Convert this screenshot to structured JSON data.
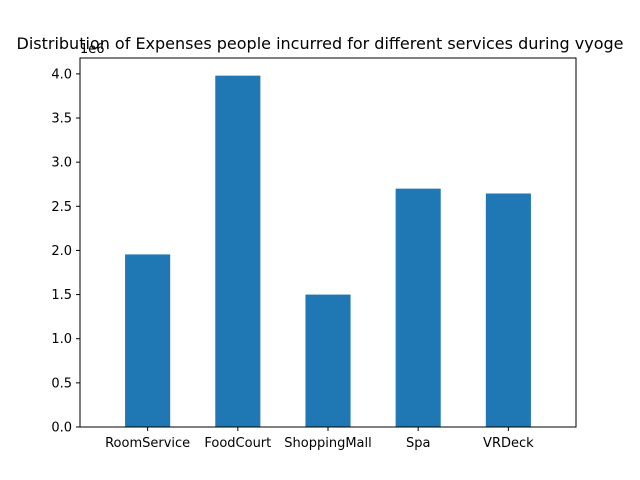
{
  "chart_data": {
    "type": "bar",
    "title": "Distribution of Expenses people incurred for different services during vyoge",
    "xlabel": "",
    "ylabel": "",
    "categories": [
      "RoomService",
      "FoodCourt",
      "ShoppingMall",
      "Spa",
      "VRDeck"
    ],
    "values": [
      1955000,
      3980000,
      1500000,
      2700000,
      2645000
    ],
    "ylim": [
      0,
      4180000
    ],
    "y_ticks": [
      0,
      500000,
      1000000,
      1500000,
      2000000,
      2500000,
      3000000,
      3500000,
      4000000
    ],
    "y_tick_labels": [
      "0.0",
      "0.5",
      "1.0",
      "1.5",
      "2.0",
      "2.5",
      "3.0",
      "3.5",
      "4.0"
    ],
    "y_offset_label": "1e6",
    "bar_color": "#1f77b4",
    "grid": false,
    "legend": "none"
  }
}
